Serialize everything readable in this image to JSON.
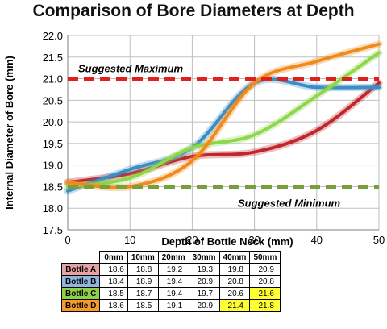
{
  "chart_data": {
    "type": "line",
    "title": "Comparison of Bore Diameters at Depth",
    "xlabel": "Depth of Bottle Neck (mm)",
    "ylabel": "Internal Diameter of Bore (mm)",
    "xlim": [
      0,
      50
    ],
    "ylim": [
      17.5,
      22.0
    ],
    "x": [
      0,
      10,
      20,
      30,
      40,
      50
    ],
    "x_ticks": [
      "0",
      "10",
      "20",
      "30",
      "40",
      "50"
    ],
    "y_ticks": [
      "17.5",
      "18.0",
      "18.5",
      "19.0",
      "19.5",
      "20.0",
      "20.5",
      "21.0",
      "21.5",
      "22.0"
    ],
    "grid": true,
    "smooth": true,
    "series": [
      {
        "name": "Bottle A",
        "values": [
          18.6,
          18.8,
          19.2,
          19.3,
          19.8,
          20.9
        ],
        "color": "#c0272d"
      },
      {
        "name": "Bottle B",
        "values": [
          18.4,
          18.9,
          19.4,
          20.9,
          20.8,
          20.8
        ],
        "color": "#3a8dc6"
      },
      {
        "name": "Bottle C",
        "values": [
          18.5,
          18.7,
          19.4,
          19.7,
          20.6,
          21.6
        ],
        "color": "#8ed64a"
      },
      {
        "name": "Bottle D",
        "values": [
          18.6,
          18.5,
          19.1,
          20.9,
          21.4,
          21.8
        ],
        "color": "#f08a1c"
      }
    ],
    "reference_lines": [
      {
        "label": "Suggested Maximum",
        "y": 21.0,
        "color": "#e0201b"
      },
      {
        "label": "Suggested Minimum",
        "y": 18.5,
        "color": "#76a03c"
      }
    ],
    "table": {
      "headers": [
        "0mm",
        "10mm",
        "20mm",
        "30mm",
        "40mm",
        "50mm"
      ],
      "rows": [
        {
          "name": "Bottle A",
          "bg": "#e6a3a3",
          "cells": [
            "18.6",
            "18.8",
            "19.2",
            "19.3",
            "19.8",
            "20.9"
          ],
          "highlight": []
        },
        {
          "name": "Bottle B",
          "bg": "#8eb6df",
          "cells": [
            "18.4",
            "18.9",
            "19.4",
            "20.9",
            "20.8",
            "20.8"
          ],
          "highlight": []
        },
        {
          "name": "Bottle C",
          "bg": "#8fd24a",
          "cells": [
            "18.5",
            "18.7",
            "19.4",
            "19.7",
            "20.6",
            "21.6"
          ],
          "highlight": [
            5
          ]
        },
        {
          "name": "Bottle D",
          "bg": "#f59a2b",
          "cells": [
            "18.6",
            "18.5",
            "19.1",
            "20.9",
            "21.4",
            "21.8"
          ],
          "highlight": [
            4,
            5
          ]
        }
      ],
      "highlight_color": "#ffff33"
    }
  }
}
